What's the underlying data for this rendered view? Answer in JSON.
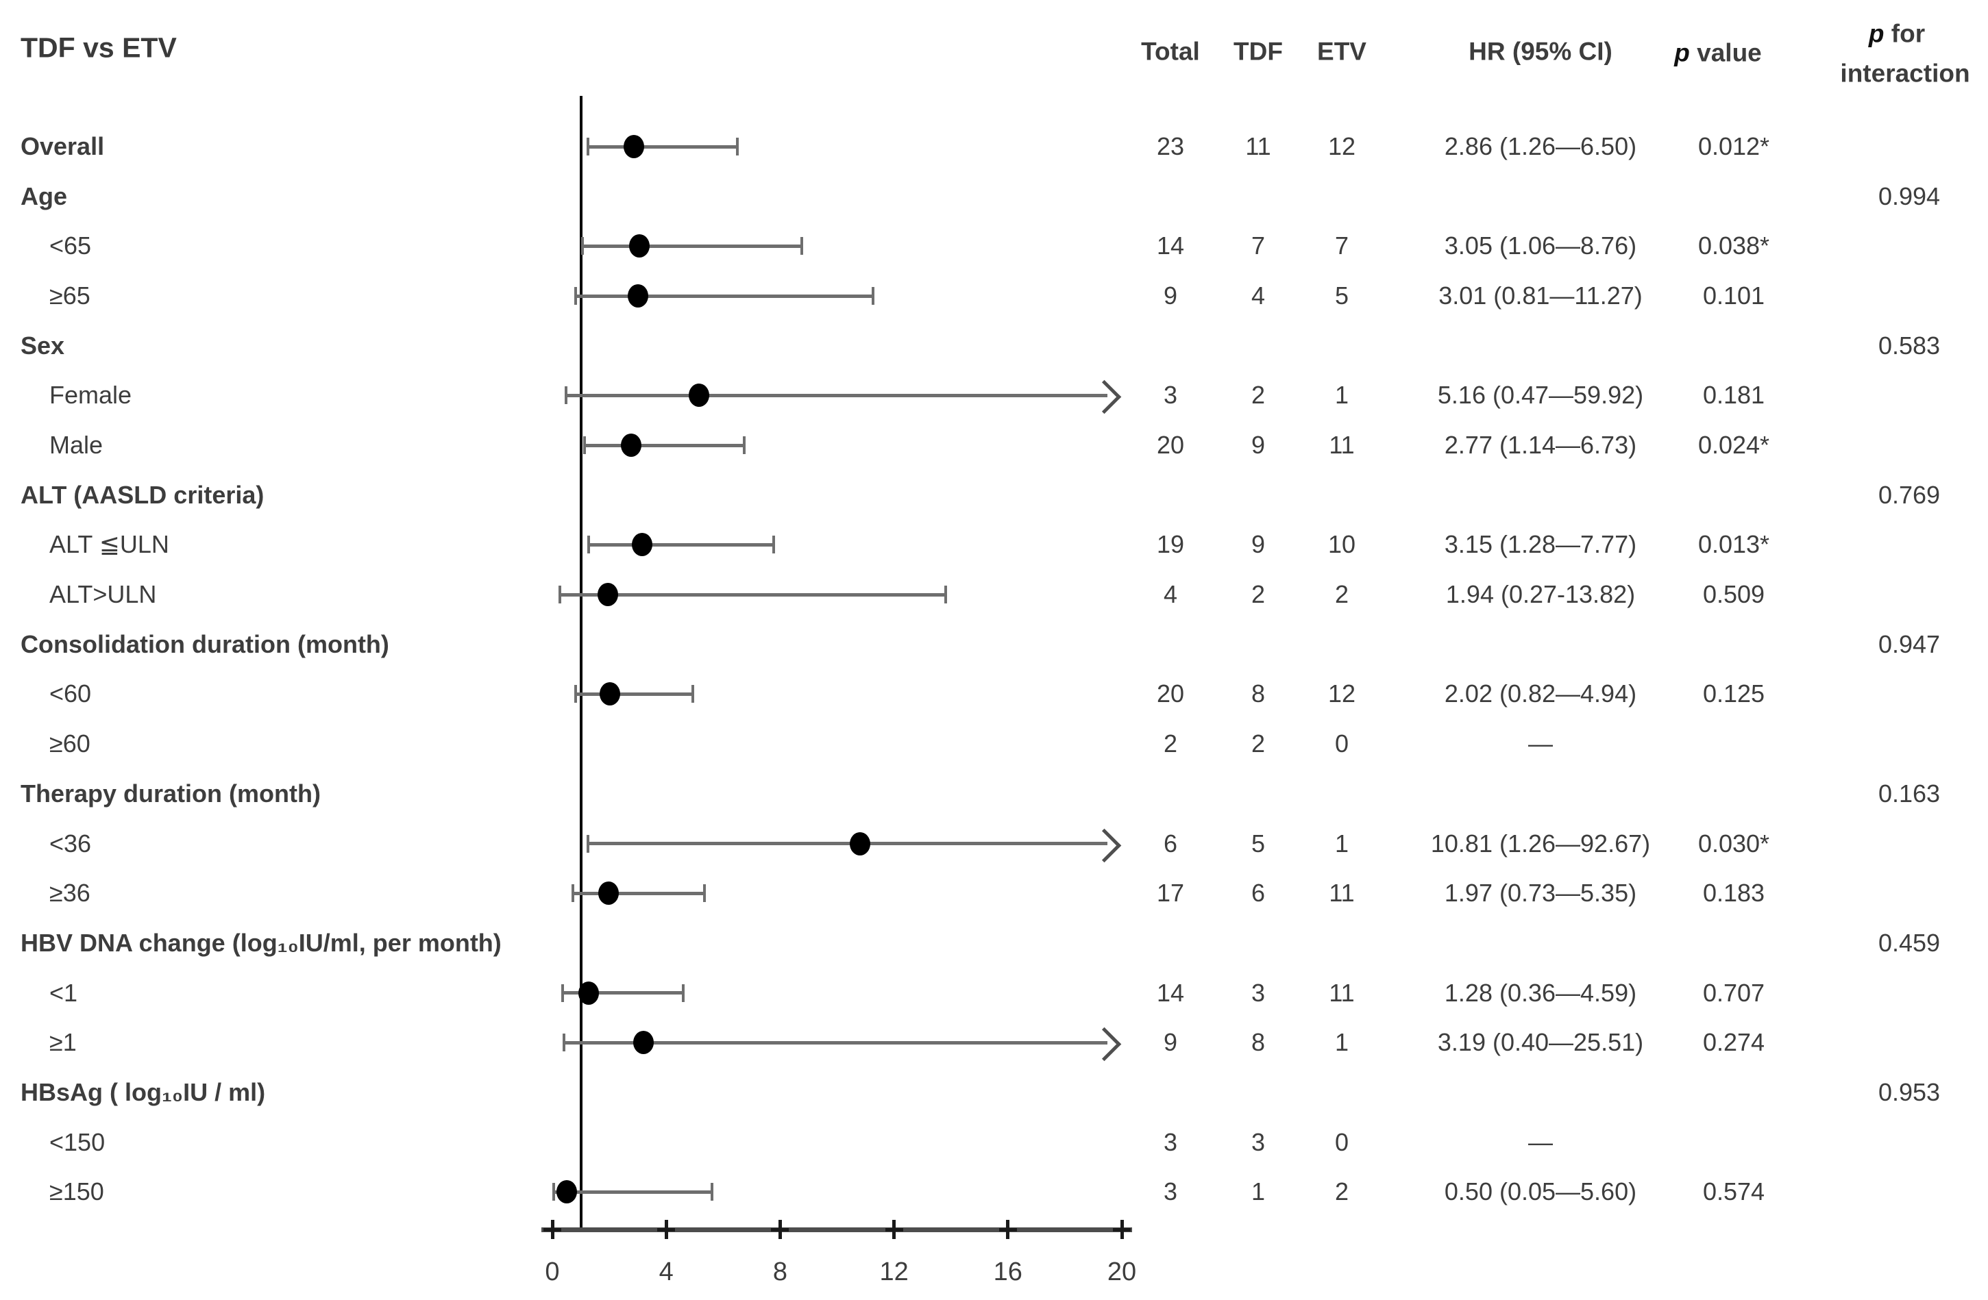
{
  "title": "TDF vs ETV",
  "header": {
    "total": "Total",
    "tdf": "TDF",
    "etv": "ETV",
    "hr": "HR (95% CI)",
    "p_italic": "p",
    "p_rest": " value",
    "pint_line1_italic": "p",
    "pint_line1_rest": " for",
    "pint_line2": "interaction"
  },
  "chart_data": {
    "type": "forest",
    "title": "TDF vs ETV",
    "axis": {
      "xmin": 0,
      "xmax": 20,
      "ticks": [
        0,
        4,
        8,
        12,
        16,
        20
      ],
      "reference_line_x": 1,
      "arrow_means": "confidence interval exceeds axis maximum"
    },
    "columns": [
      "Total",
      "TDF",
      "ETV",
      "HR (95% CI)",
      "p value",
      "p for interaction"
    ],
    "rows": [
      {
        "label": "Overall",
        "kind": "overall",
        "bold": true,
        "indent": false,
        "total": "23",
        "tdf": "11",
        "etv": "12",
        "hr_text": "2.86 (1.26—6.50)",
        "p": "0.012*",
        "p_interaction": "",
        "hr": 2.86,
        "lo": 1.26,
        "hi": 6.5,
        "arrow": false
      },
      {
        "label": "Age",
        "kind": "group",
        "bold": true,
        "indent": false,
        "total": "",
        "tdf": "",
        "etv": "",
        "hr_text": "",
        "p": "",
        "p_interaction": "0.994",
        "hr": null,
        "lo": null,
        "hi": null,
        "arrow": false
      },
      {
        "label": "<65",
        "kind": "sub",
        "bold": false,
        "indent": true,
        "total": "14",
        "tdf": "7",
        "etv": "7",
        "hr_text": "3.05 (1.06—8.76)",
        "p": "0.038*",
        "p_interaction": "",
        "hr": 3.05,
        "lo": 1.06,
        "hi": 8.76,
        "arrow": false
      },
      {
        "label": "≥65",
        "kind": "sub",
        "bold": false,
        "indent": true,
        "total": "9",
        "tdf": "4",
        "etv": "5",
        "hr_text": "3.01 (0.81—11.27)",
        "p": "0.101",
        "p_interaction": "",
        "hr": 3.01,
        "lo": 0.81,
        "hi": 11.27,
        "arrow": false
      },
      {
        "label": "Sex",
        "kind": "group",
        "bold": true,
        "indent": false,
        "total": "",
        "tdf": "",
        "etv": "",
        "hr_text": "",
        "p": "",
        "p_interaction": "0.583",
        "hr": null,
        "lo": null,
        "hi": null,
        "arrow": false
      },
      {
        "label": "Female",
        "kind": "sub",
        "bold": false,
        "indent": true,
        "total": "3",
        "tdf": "2",
        "etv": "1",
        "hr_text": "5.16 (0.47—59.92)",
        "p": "0.181",
        "p_interaction": "",
        "hr": 5.16,
        "lo": 0.47,
        "hi": 59.92,
        "arrow": true
      },
      {
        "label": "Male",
        "kind": "sub",
        "bold": false,
        "indent": true,
        "total": "20",
        "tdf": "9",
        "etv": "11",
        "hr_text": "2.77 (1.14—6.73)",
        "p": "0.024*",
        "p_interaction": "",
        "hr": 2.77,
        "lo": 1.14,
        "hi": 6.73,
        "arrow": false
      },
      {
        "label": "ALT (AASLD criteria)",
        "kind": "group",
        "bold": true,
        "indent": false,
        "total": "",
        "tdf": "",
        "etv": "",
        "hr_text": "",
        "p": "",
        "p_interaction": "0.769",
        "hr": null,
        "lo": null,
        "hi": null,
        "arrow": false
      },
      {
        "label": "ALT ≦ULN",
        "kind": "sub",
        "bold": false,
        "indent": true,
        "total": "19",
        "tdf": "9",
        "etv": "10",
        "hr_text": "3.15 (1.28—7.77)",
        "p": "0.013*",
        "p_interaction": "",
        "hr": 3.15,
        "lo": 1.28,
        "hi": 7.77,
        "arrow": false
      },
      {
        "label": "ALT>ULN",
        "kind": "sub",
        "bold": false,
        "indent": true,
        "total": "4",
        "tdf": "2",
        "etv": "2",
        "hr_text": "1.94 (0.27-13.82)",
        "p": "0.509",
        "p_interaction": "",
        "hr": 1.94,
        "lo": 0.27,
        "hi": 13.82,
        "arrow": false
      },
      {
        "label": "Consolidation duration (month)",
        "kind": "group",
        "bold": true,
        "indent": false,
        "total": "",
        "tdf": "",
        "etv": "",
        "hr_text": "",
        "p": "",
        "p_interaction": "0.947",
        "hr": null,
        "lo": null,
        "hi": null,
        "arrow": false
      },
      {
        "label": "<60",
        "kind": "sub",
        "bold": false,
        "indent": true,
        "total": "20",
        "tdf": "8",
        "etv": "12",
        "hr_text": "2.02 (0.82—4.94)",
        "p": "0.125",
        "p_interaction": "",
        "hr": 2.02,
        "lo": 0.82,
        "hi": 4.94,
        "arrow": false
      },
      {
        "label": "≥60",
        "kind": "sub",
        "bold": false,
        "indent": true,
        "total": "2",
        "tdf": "2",
        "etv": "0",
        "hr_text": "—",
        "p": "",
        "p_interaction": "",
        "hr": null,
        "lo": null,
        "hi": null,
        "arrow": false
      },
      {
        "label": "Therapy duration (month)",
        "kind": "group",
        "bold": true,
        "indent": false,
        "total": "",
        "tdf": "",
        "etv": "",
        "hr_text": "",
        "p": "",
        "p_interaction": "0.163",
        "hr": null,
        "lo": null,
        "hi": null,
        "arrow": false
      },
      {
        "label": "<36",
        "kind": "sub",
        "bold": false,
        "indent": true,
        "total": "6",
        "tdf": "5",
        "etv": "1",
        "hr_text": "10.81 (1.26—92.67)",
        "p": "0.030*",
        "p_interaction": "",
        "hr": 10.81,
        "lo": 1.26,
        "hi": 92.67,
        "arrow": true
      },
      {
        "label": "≥36",
        "kind": "sub",
        "bold": false,
        "indent": true,
        "total": "17",
        "tdf": "6",
        "etv": "11",
        "hr_text": "1.97 (0.73—5.35)",
        "p": "0.183",
        "p_interaction": "",
        "hr": 1.97,
        "lo": 0.73,
        "hi": 5.35,
        "arrow": false
      },
      {
        "label": "HBV DNA change  (log₁₀IU/ml, per month)",
        "kind": "group",
        "bold": true,
        "indent": false,
        "total": "",
        "tdf": "",
        "etv": "",
        "hr_text": "",
        "p": "",
        "p_interaction": "0.459",
        "hr": null,
        "lo": null,
        "hi": null,
        "arrow": false
      },
      {
        "label": "<1",
        "kind": "sub",
        "bold": false,
        "indent": true,
        "total": "14",
        "tdf": "3",
        "etv": "11",
        "hr_text": "1.28 (0.36—4.59)",
        "p": "0.707",
        "p_interaction": "",
        "hr": 1.28,
        "lo": 0.36,
        "hi": 4.59,
        "arrow": false
      },
      {
        "label": "≥1",
        "kind": "sub",
        "bold": false,
        "indent": true,
        "total": "9",
        "tdf": "8",
        "etv": "1",
        "hr_text": "3.19 (0.40—25.51)",
        "p": "0.274",
        "p_interaction": "",
        "hr": 3.19,
        "lo": 0.4,
        "hi": 25.51,
        "arrow": true
      },
      {
        "label": "HBsAg ( log₁₀IU / ml)",
        "kind": "group",
        "bold": true,
        "indent": false,
        "total": "",
        "tdf": "",
        "etv": "",
        "hr_text": "",
        "p": "",
        "p_interaction": "0.953",
        "hr": null,
        "lo": null,
        "hi": null,
        "arrow": false
      },
      {
        "label": "<150",
        "kind": "sub",
        "bold": false,
        "indent": true,
        "total": "3",
        "tdf": "3",
        "etv": "0",
        "hr_text": "—",
        "p": "",
        "p_interaction": "",
        "hr": null,
        "lo": null,
        "hi": null,
        "arrow": false
      },
      {
        "label": "≥150",
        "kind": "sub",
        "bold": false,
        "indent": true,
        "total": "3",
        "tdf": "1",
        "etv": "2",
        "hr_text": "0.50 (0.05—5.60)",
        "p": "0.574",
        "p_interaction": "",
        "hr": 0.5,
        "lo": 0.05,
        "hi": 5.6,
        "arrow": false
      }
    ]
  },
  "colors": {
    "text": "#3d3d3d",
    "marker": "#000000",
    "ci_bar": "#6e6e6e",
    "axis": "#4d4d4d",
    "reference_line": "#000000"
  }
}
